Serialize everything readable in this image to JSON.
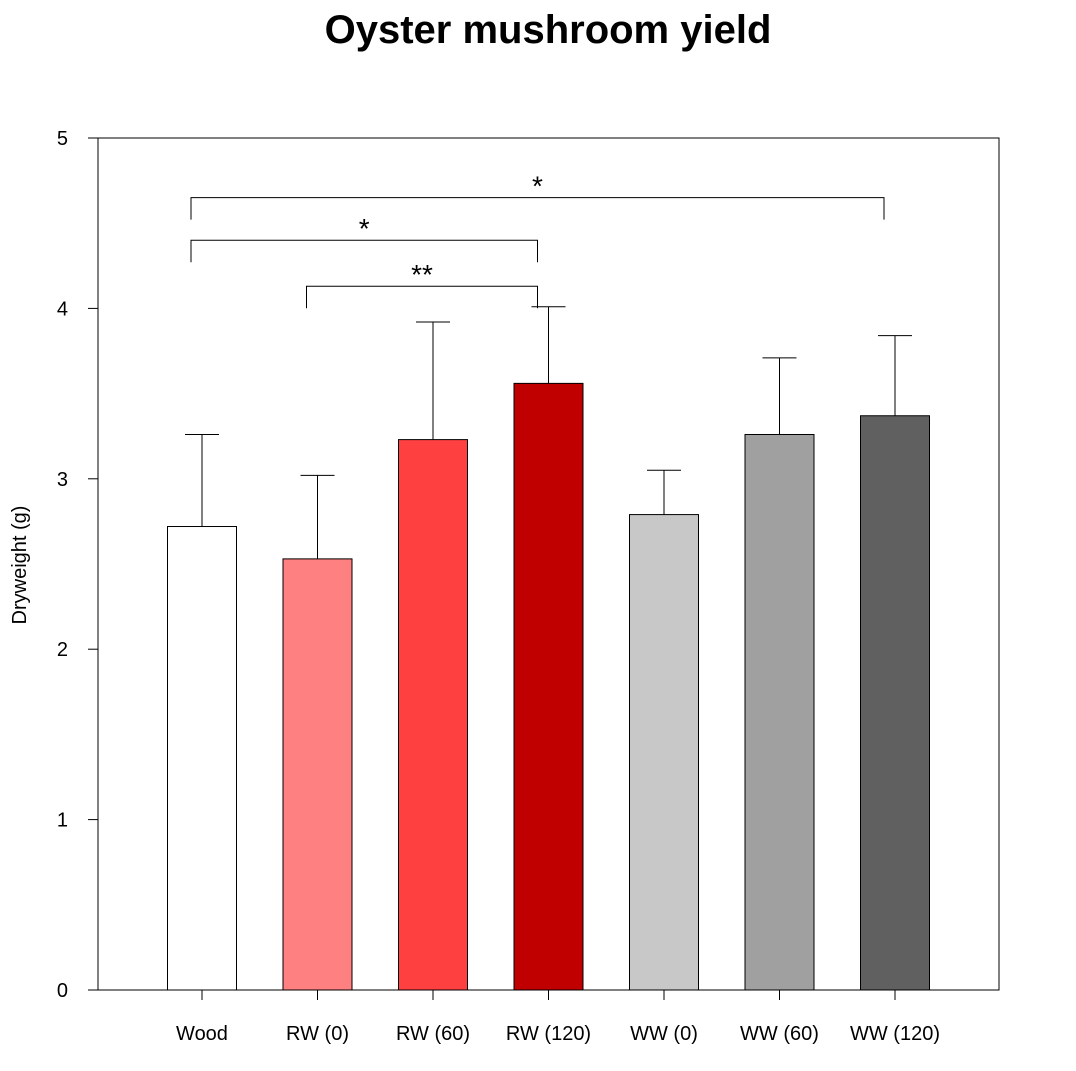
{
  "chart_data": {
    "type": "bar",
    "title": "Oyster mushroom yield",
    "xlabel": "",
    "ylabel": "Dryweight (g)",
    "ylim": [
      0,
      5
    ],
    "yticks": [
      0,
      1,
      2,
      3,
      4,
      5
    ],
    "grid": false,
    "legend": "none",
    "categories": [
      "Wood",
      "RW (0)",
      "RW (60)",
      "RW (120)",
      "WW (0)",
      "WW (60)",
      "WW (120)"
    ],
    "values": [
      2.72,
      2.53,
      3.23,
      3.56,
      2.79,
      3.26,
      3.37
    ],
    "error_upper": [
      0.54,
      0.49,
      0.69,
      0.45,
      0.26,
      0.45,
      0.47
    ],
    "colors": [
      "#ffffff",
      "#ff8080",
      "#ff4040",
      "#c00000",
      "#c8c8c8",
      "#a0a0a0",
      "#606060"
    ],
    "significance": [
      {
        "from": 0,
        "to": 6,
        "y": 4.65,
        "label": "*"
      },
      {
        "from": 0,
        "to": 3,
        "y": 4.4,
        "label": "*"
      },
      {
        "from": 1,
        "to": 3,
        "y": 4.13,
        "label": "**"
      }
    ]
  }
}
